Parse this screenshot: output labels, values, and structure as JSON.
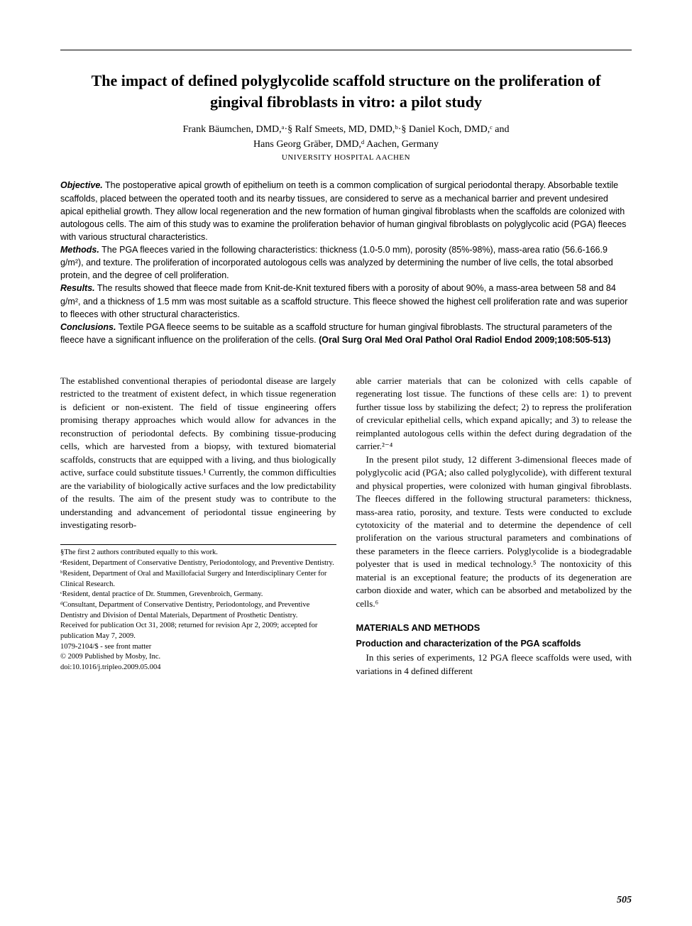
{
  "title": "The impact of defined polyglycolide scaffold structure on the proliferation of gingival fibroblasts in vitro: a pilot study",
  "authors_line1": "Frank Bäumchen, DMD,ᵃ·§ Ralf Smeets, MD, DMD,ᵇ·§ Daniel Koch, DMD,ᶜ and",
  "authors_line2": "Hans Georg Gräber, DMD,ᵈ Aachen, Germany",
  "affiliation": "UNIVERSITY HOSPITAL AACHEN",
  "abstract": {
    "objective_label": "Objective.",
    "objective": " The postoperative apical growth of epithelium on teeth is a common complication of surgical periodontal therapy. Absorbable textile scaffolds, placed between the operated tooth and its nearby tissues, are considered to serve as a mechanical barrier and prevent undesired apical epithelial growth. They allow local regeneration and the new formation of human gingival fibroblasts when the scaffolds are colonized with autologous cells. The aim of this study was to examine the proliferation behavior of human gingival fibroblasts on polyglycolic acid (PGA) fleeces with various structural characteristics.",
    "methods_label": "Methods.",
    "methods": " The PGA fleeces varied in the following characteristics: thickness (1.0-5.0 mm), porosity (85%-98%), mass-area ratio (56.6-166.9 g/m²), and texture. The proliferation of incorporated autologous cells was analyzed by determining the number of live cells, the total absorbed protein, and the degree of cell proliferation.",
    "results_label": "Results.",
    "results": " The results showed that fleece made from Knit-de-Knit textured fibers with a porosity of about 90%, a mass-area between 58 and 84 g/m², and a thickness of 1.5 mm was most suitable as a scaffold structure. This fleece showed the highest cell proliferation rate and was superior to fleeces with other structural characteristics.",
    "conclusions_label": "Conclusions.",
    "conclusions": " Textile PGA fleece seems to be suitable as a scaffold structure for human gingival fibroblasts. The structural parameters of the fleece have a significant influence on the proliferation of the cells. ",
    "citation": "(Oral Surg Oral Med Oral Pathol Oral Radiol Endod 2009;108:505-513)"
  },
  "body": {
    "left_p1": "The established conventional therapies of periodontal disease are largely restricted to the treatment of existent defect, in which tissue regeneration is deficient or non-existent. The field of tissue engineering offers promising therapy approaches which would allow for advances in the reconstruction of periodontal defects. By combining tissue-producing cells, which are harvested from a biopsy, with textured biomaterial scaffolds, constructs that are equipped with a living, and thus biologically active, surface could substitute tissues.¹ Currently, the common difficulties are the variability of biologically active surfaces and the low predictability of the results. The aim of the present study was to contribute to the understanding and advancement of periodontal tissue engineering by investigating resorb-",
    "right_p1": "able carrier materials that can be colonized with cells capable of regenerating lost tissue. The functions of these cells are: 1) to prevent further tissue loss by stabilizing the defect; 2) to repress the proliferation of crevicular epithelial cells, which expand apically; and 3) to release the reimplanted autologous cells within the defect during degradation of the carrier.²⁻⁴",
    "right_p2": "In the present pilot study, 12 different 3-dimensional fleeces made of polyglycolic acid (PGA; also called polyglycolide), with different textural and physical properties, were colonized with human gingival fibroblasts. The fleeces differed in the following structural parameters: thickness, mass-area ratio, porosity, and texture. Tests were conducted to exclude cytotoxicity of the material and to determine the dependence of cell proliferation on the various structural parameters and combinations of these parameters in the fleece carriers. Polyglycolide is a biodegradable polyester that is used in medical technology.⁵ The nontoxicity of this material is an exceptional feature; the products of its degeneration are carbon dioxide and water, which can be absorbed and metabolized by the cells.⁶",
    "methods_head": "MATERIALS AND METHODS",
    "methods_sub": "Production and characterization of the PGA scaffolds",
    "methods_p1": "In this series of experiments, 12 PGA fleece scaffolds were used, with variations in 4 defined different"
  },
  "footnotes": {
    "f0": "§The first 2 authors contributed equally to this work.",
    "f1": "ᵃResident, Department of Conservative Dentistry, Periodontology, and Preventive Dentistry.",
    "f2": "ᵇResident, Department of Oral and Maxillofacial Surgery and Interdisciplinary Center for Clinical Research.",
    "f3": "ᶜResident, dental practice of Dr. Stummen, Grevenbroich, Germany.",
    "f4": "ᵈConsultant, Department of Conservative Dentistry, Periodontology, and Preventive Dentistry and Division of Dental Materials, Department of Prosthetic Dentistry.",
    "f5": "Received for publication Oct 31, 2008; returned for revision Apr 2, 2009; accepted for publication May 7, 2009.",
    "f6": "1079-2104/$ - see front matter",
    "f7": "© 2009 Published by Mosby, Inc.",
    "f8": "doi:10.1016/j.tripleo.2009.05.004"
  },
  "page_number": "505"
}
